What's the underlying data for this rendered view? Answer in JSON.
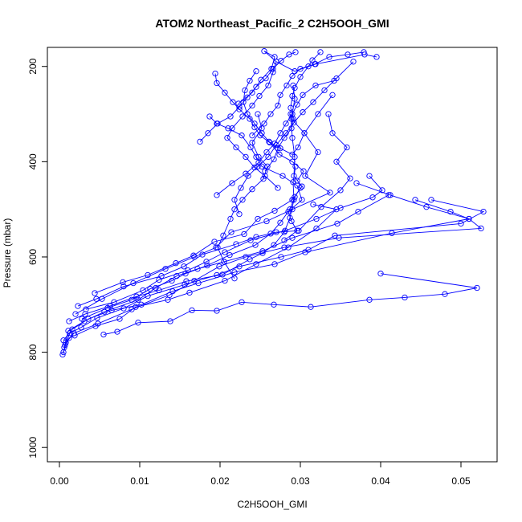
{
  "chart_data": {
    "type": "line",
    "title": "ATOM2 Northeast_Pacific_2 C2H5OOH_GMI",
    "xlabel": "C2H5OOH_GMI",
    "ylabel": "Pressure (mbar)",
    "xlim": [
      -0.0015,
      0.0545
    ],
    "ylim": [
      1030,
      160
    ],
    "y_reversed": true,
    "xticks": [
      0.0,
      0.01,
      0.02,
      0.03,
      0.04,
      0.05
    ],
    "xtick_labels": [
      "0.00",
      "0.01",
      "0.02",
      "0.03",
      "0.04",
      "0.05"
    ],
    "yticks": [
      200,
      400,
      600,
      800,
      1000
    ],
    "ytick_labels": [
      "200",
      "400",
      "600",
      "800",
      "1000"
    ],
    "marker": "open-circle",
    "color": "#0000ff",
    "grid": false,
    "series": [
      {
        "x": [
          0.0004,
          0.0008,
          0.0018,
          0.0048,
          0.009,
          0.0137,
          0.0168,
          0.0199,
          0.0232,
          0.028,
          0.0348,
          0.0525,
          0.051,
          0.0487,
          0.0443
        ],
        "y": [
          805,
          780,
          760,
          740,
          710,
          680,
          650,
          620,
          600,
          580,
          560,
          540,
          520,
          505,
          480
        ]
      },
      {
        "x": [
          0.0005,
          0.0012,
          0.0019,
          0.0045,
          0.0075,
          0.0095,
          0.0135,
          0.0162,
          0.0206,
          0.0245,
          0.0285,
          0.032,
          0.0345,
          0.0316
        ],
        "y": [
          800,
          770,
          765,
          745,
          730,
          705,
          690,
          675,
          650,
          615,
          580,
          540,
          500,
          490
        ]
      },
      {
        "x": [
          0.0006,
          0.0011,
          0.0031,
          0.0056,
          0.0098,
          0.012,
          0.0146,
          0.0172,
          0.0205,
          0.0253,
          0.029,
          0.0346,
          0.0372,
          0.041
        ],
        "y": [
          790,
          755,
          735,
          715,
          690,
          665,
          640,
          625,
          610,
          588,
          560,
          530,
          505,
          470
        ]
      },
      {
        "x": [
          0.0007,
          0.0013,
          0.0027,
          0.0047,
          0.008,
          0.011,
          0.0156,
          0.0196,
          0.0224,
          0.0276,
          0.031,
          0.0343,
          0.05,
          0.0528,
          0.0463
        ],
        "y": [
          785,
          760,
          748,
          728,
          708,
          682,
          658,
          638,
          620,
          600,
          585,
          555,
          530,
          505,
          480
        ]
      },
      {
        "x": [
          0.0005,
          0.0016,
          0.0036,
          0.0065,
          0.0102,
          0.0141,
          0.0173,
          0.0218,
          0.0268,
          0.0306,
          0.0414,
          0.051,
          0.0457,
          0.0412,
          0.037
        ],
        "y": [
          775,
          752,
          730,
          712,
          700,
          672,
          655,
          632,
          615,
          590,
          550,
          520,
          495,
          470,
          445
        ]
      },
      {
        "x": [
          0.0055,
          0.0072,
          0.0098,
          0.0138,
          0.0165,
          0.0196,
          0.0227,
          0.0267,
          0.0313,
          0.0386,
          0.043,
          0.048,
          0.052,
          0.04
        ],
        "y": [
          763,
          757,
          738,
          735,
          712,
          713,
          695,
          700,
          705,
          690,
          685,
          678,
          665,
          635
        ]
      },
      {
        "x": [
          0.0023,
          0.0046,
          0.008,
          0.0127,
          0.0155,
          0.0178,
          0.022,
          0.0245,
          0.027,
          0.0298,
          0.0326,
          0.035,
          0.0362,
          0.0345,
          0.0358,
          0.034,
          0.0335
        ],
        "y": [
          703,
          688,
          662,
          640,
          620,
          595,
          573,
          558,
          548,
          545,
          495,
          460,
          435,
          400,
          370,
          340,
          300
        ]
      },
      {
        "x": [
          0.002,
          0.0053,
          0.0092,
          0.0132,
          0.0168,
          0.0195,
          0.0214,
          0.0258,
          0.029,
          0.0337,
          0.0306,
          0.0322,
          0.0305,
          0.0289,
          0.0293,
          0.0291
        ],
        "y": [
          720,
          688,
          655,
          625,
          600,
          580,
          548,
          525,
          500,
          465,
          430,
          380,
          340,
          310,
          268,
          240
        ]
      },
      {
        "x": [
          0.0044,
          0.0079,
          0.011,
          0.0145,
          0.0167,
          0.0193,
          0.023,
          0.0247,
          0.0268,
          0.029,
          0.0302,
          0.0292,
          0.0293,
          0.029,
          0.0288
        ],
        "y": [
          676,
          653,
          638,
          613,
          597,
          568,
          552,
          520,
          503,
          480,
          452,
          430,
          390,
          350,
          300
        ]
      },
      {
        "x": [
          0.0033,
          0.0068,
          0.0104,
          0.0124,
          0.016,
          0.0183,
          0.0206,
          0.0238,
          0.0281,
          0.032,
          0.035,
          0.039,
          0.0402,
          0.0386
        ],
        "y": [
          710,
          695,
          670,
          648,
          628,
          610,
          590,
          565,
          545,
          520,
          497,
          475,
          460,
          430
        ]
      },
      {
        "x": [
          0.0012,
          0.0032,
          0.0063,
          0.0096,
          0.0124,
          0.0158,
          0.0203,
          0.0237,
          0.0253,
          0.0267,
          0.028,
          0.0287,
          0.0292,
          0.0291,
          0.0294
        ],
        "y": [
          735,
          720,
          703,
          683,
          670,
          651,
          637,
          605,
          592,
          575,
          548,
          518,
          480,
          443,
          410
        ]
      },
      {
        "x": [
          0.0028,
          0.006,
          0.009,
          0.0113,
          0.014,
          0.0157,
          0.0184,
          0.0212,
          0.0244,
          0.0263,
          0.0275,
          0.0287,
          0.0293,
          0.03
        ],
        "y": [
          730,
          707,
          690,
          667,
          650,
          635,
          618,
          596,
          575,
          551,
          528,
          500,
          474,
          455
        ]
      },
      {
        "x": [
          0.0218,
          0.0205,
          0.0197,
          0.0204,
          0.0213,
          0.0218,
          0.0228,
          0.024,
          0.0254,
          0.0259,
          0.0248,
          0.024,
          0.0252,
          0.0247
        ],
        "y": [
          645,
          610,
          580,
          555,
          520,
          500,
          480,
          458,
          436,
          410,
          390,
          360,
          330,
          300
        ]
      },
      {
        "x": [
          0.028,
          0.0296,
          0.0289,
          0.0285,
          0.0302,
          0.0296,
          0.0278,
          0.0252,
          0.0245,
          0.0238,
          0.0227,
          0.021,
          0.0196,
          0.0187
        ],
        "y": [
          565,
          545,
          525,
          505,
          480,
          450,
          430,
          410,
          390,
          370,
          345,
          330,
          320,
          305
        ]
      },
      {
        "x": [
          0.0296,
          0.0304,
          0.029,
          0.0274,
          0.0262,
          0.025,
          0.0243,
          0.0237,
          0.0224,
          0.0216,
          0.0206,
          0.0196,
          0.0194
        ],
        "y": [
          440,
          420,
          400,
          385,
          360,
          345,
          328,
          310,
          290,
          275,
          255,
          235,
          215
        ]
      },
      {
        "x": [
          0.0256,
          0.0267,
          0.0272,
          0.028,
          0.0289,
          0.0291,
          0.0288,
          0.029,
          0.0293,
          0.03,
          0.031,
          0.0315,
          0.0325
        ],
        "y": [
          420,
          395,
          372,
          350,
          330,
          310,
          287,
          262,
          245,
          222,
          200,
          187,
          170
        ]
      },
      {
        "x": [
          0.0272,
          0.0256,
          0.0243,
          0.0232,
          0.022,
          0.0209,
          0.0215,
          0.0228,
          0.024,
          0.0249,
          0.026,
          0.0266,
          0.027
        ],
        "y": [
          455,
          430,
          412,
          390,
          370,
          350,
          330,
          305,
          282,
          262,
          240,
          212,
          190
        ]
      },
      {
        "x": [
          0.0224,
          0.0218,
          0.0226,
          0.0235,
          0.0247,
          0.026,
          0.027,
          0.0282,
          0.0292,
          0.0303,
          0.0316,
          0.033,
          0.0345
        ],
        "y": [
          510,
          480,
          455,
          430,
          410,
          390,
          365,
          340,
          318,
          296,
          275,
          250,
          225
        ]
      },
      {
        "x": [
          0.0196,
          0.0215,
          0.0232,
          0.0248,
          0.0258,
          0.0268,
          0.0275,
          0.0282,
          0.029,
          0.0296,
          0.0303,
          0.0319,
          0.0342,
          0.0366
        ],
        "y": [
          470,
          445,
          425,
          402,
          380,
          362,
          340,
          320,
          300,
          280,
          260,
          240,
          230,
          190
        ]
      },
      {
        "x": [
          0.024,
          0.0255,
          0.0263,
          0.0272,
          0.0275,
          0.0283,
          0.029,
          0.03,
          0.0318,
          0.0336,
          0.0359,
          0.0379
        ],
        "y": [
          345,
          320,
          300,
          282,
          260,
          240,
          220,
          205,
          195,
          180,
          175,
          170
        ]
      },
      {
        "x": [
          0.0245,
          0.0237,
          0.0231,
          0.0229,
          0.0234,
          0.0243,
          0.0252,
          0.0261,
          0.0275,
          0.029,
          0.0297,
          0.0305,
          0.0322,
          0.034
        ],
        "y": [
          210,
          230,
          250,
          275,
          300,
          320,
          340,
          358,
          372,
          385,
          370,
          340,
          300,
          260
        ]
      },
      {
        "x": [
          0.0223,
          0.024,
          0.0251,
          0.0264,
          0.0268,
          0.0255,
          0.027,
          0.0293,
          0.0319,
          0.038,
          0.0395
        ],
        "y": [
          278,
          255,
          228,
          205,
          180,
          168,
          190,
          210,
          195,
          175,
          180
        ]
      },
      {
        "x": [
          0.0175,
          0.0185,
          0.0197,
          0.0213,
          0.0224,
          0.0234,
          0.0245,
          0.0257,
          0.0266,
          0.0276,
          0.0286,
          0.0294
        ],
        "y": [
          358,
          340,
          320,
          305,
          285,
          265,
          243,
          225,
          205,
          188,
          175,
          170
        ]
      }
    ]
  }
}
